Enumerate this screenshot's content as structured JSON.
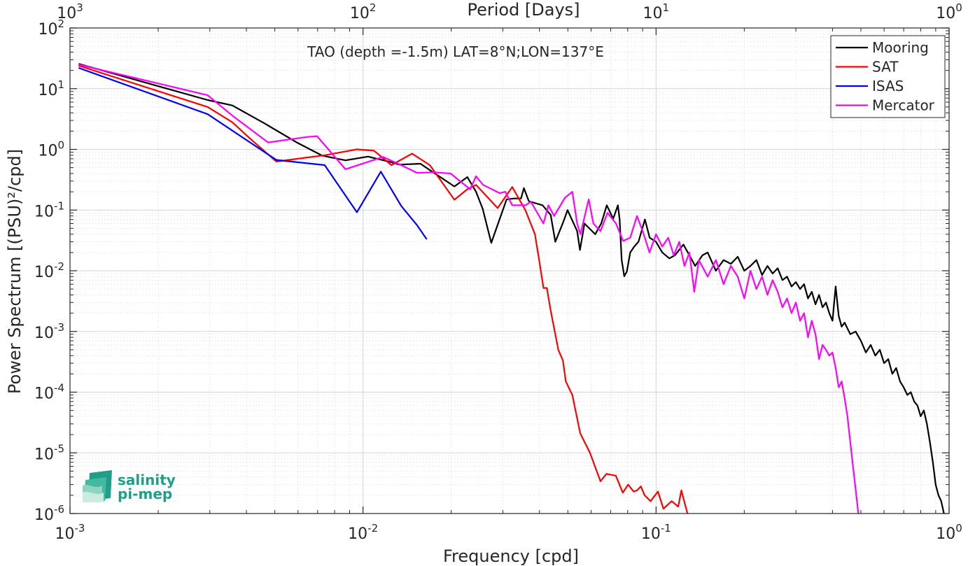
{
  "chart_data": {
    "type": "line",
    "title": "TAO (depth =-1.5m) LAT=8°N;LON=137°E",
    "xlabel": "Frequency [cpd]",
    "ylabel": "Power Spectrum [(PSU)²/cpd]",
    "top_xlabel": "Period [Days]",
    "xscale": "log",
    "yscale": "log",
    "xlim": [
      0.001,
      1
    ],
    "ylim": [
      1e-06,
      100
    ],
    "grid": true,
    "minor_grid": true,
    "legend_position": "top-right",
    "x_ticks": [
      {
        "value": 0.001,
        "base": "10",
        "exp": "-3"
      },
      {
        "value": 0.01,
        "base": "10",
        "exp": "-2"
      },
      {
        "value": 0.1,
        "base": "10",
        "exp": "-1"
      },
      {
        "value": 1,
        "base": "10",
        "exp": "0"
      }
    ],
    "top_ticks": [
      {
        "value": 0.001,
        "base": "10",
        "exp": "3"
      },
      {
        "value": 0.01,
        "base": "10",
        "exp": "2"
      },
      {
        "value": 0.1,
        "base": "10",
        "exp": "1"
      },
      {
        "value": 1,
        "base": "10",
        "exp": "0"
      }
    ],
    "y_ticks": [
      {
        "value": 100,
        "base": "10",
        "exp": "2"
      },
      {
        "value": 10,
        "base": "10",
        "exp": "1"
      },
      {
        "value": 1,
        "base": "10",
        "exp": "0"
      },
      {
        "value": 0.1,
        "base": "10",
        "exp": "-1"
      },
      {
        "value": 0.01,
        "base": "10",
        "exp": "-2"
      },
      {
        "value": 0.001,
        "base": "10",
        "exp": "-3"
      },
      {
        "value": 0.0001,
        "base": "10",
        "exp": "-4"
      },
      {
        "value": 1e-05,
        "base": "10",
        "exp": "-5"
      },
      {
        "value": 1e-06,
        "base": "10",
        "exp": "-6"
      }
    ],
    "series": [
      {
        "name": "Mooring",
        "color": "#000000",
        "points": [
          [
            0.00107,
            25.7
          ],
          [
            0.00295,
            6.5
          ],
          [
            0.00358,
            5.3
          ],
          [
            0.00457,
            2.75
          ],
          [
            0.00594,
            1.3
          ],
          [
            0.00725,
            0.79
          ],
          [
            0.00871,
            0.66
          ],
          [
            0.0104,
            0.76
          ],
          [
            0.0124,
            0.62
          ],
          [
            0.0133,
            0.56
          ],
          [
            0.0157,
            0.58
          ],
          [
            0.0172,
            0.43
          ],
          [
            0.0205,
            0.245
          ],
          [
            0.0227,
            0.35
          ],
          [
            0.0243,
            0.2
          ],
          [
            0.0256,
            0.105
          ],
          [
            0.0274,
            0.0288
          ],
          [
            0.0309,
            0.15
          ],
          [
            0.0327,
            0.155
          ],
          [
            0.0346,
            0.155
          ],
          [
            0.0354,
            0.23
          ],
          [
            0.0368,
            0.14
          ],
          [
            0.041,
            0.12
          ],
          [
            0.0437,
            0.083
          ],
          [
            0.0453,
            0.03
          ],
          [
            0.0482,
            0.063
          ],
          [
            0.0499,
            0.1
          ],
          [
            0.0538,
            0.045
          ],
          [
            0.055,
            0.022
          ],
          [
            0.057,
            0.06
          ],
          [
            0.062,
            0.04
          ],
          [
            0.065,
            0.06
          ],
          [
            0.0679,
            0.12
          ],
          [
            0.0714,
            0.072
          ],
          [
            0.0741,
            0.12
          ],
          [
            0.0751,
            0.07
          ],
          [
            0.0763,
            0.015
          ],
          [
            0.0779,
            0.0081
          ],
          [
            0.0795,
            0.0097
          ],
          [
            0.0816,
            0.02
          ],
          [
            0.0842,
            0.025
          ],
          [
            0.0871,
            0.03
          ],
          [
            0.0916,
            0.07
          ],
          [
            0.0951,
            0.035
          ],
          [
            0.1,
            0.03
          ],
          [
            0.105,
            0.02
          ],
          [
            0.111,
            0.016
          ],
          [
            0.116,
            0.018
          ],
          [
            0.124,
            0.027
          ],
          [
            0.13,
            0.018
          ],
          [
            0.136,
            0.012
          ],
          [
            0.144,
            0.018
          ],
          [
            0.15,
            0.02
          ],
          [
            0.16,
            0.01
          ],
          [
            0.17,
            0.015
          ],
          [
            0.18,
            0.013
          ],
          [
            0.19,
            0.017
          ],
          [
            0.2,
            0.01
          ],
          [
            0.21,
            0.012
          ],
          [
            0.22,
            0.015
          ],
          [
            0.23,
            0.0085
          ],
          [
            0.24,
            0.012
          ],
          [
            0.25,
            0.009
          ],
          [
            0.26,
            0.011
          ],
          [
            0.27,
            0.007
          ],
          [
            0.28,
            0.008
          ],
          [
            0.29,
            0.0055
          ],
          [
            0.3,
            0.0065
          ],
          [
            0.31,
            0.005
          ],
          [
            0.32,
            0.006
          ],
          [
            0.33,
            0.0035
          ],
          [
            0.34,
            0.0045
          ],
          [
            0.35,
            0.0028
          ],
          [
            0.36,
            0.004
          ],
          [
            0.37,
            0.0025
          ],
          [
            0.38,
            0.003
          ],
          [
            0.39,
            0.002
          ],
          [
            0.4,
            0.0015
          ],
          [
            0.41,
            0.0055
          ],
          [
            0.42,
            0.0018
          ],
          [
            0.43,
            0.0012
          ],
          [
            0.44,
            0.0014
          ],
          [
            0.46,
            0.0009
          ],
          [
            0.48,
            0.001
          ],
          [
            0.5,
            0.0007
          ],
          [
            0.52,
            0.00045
          ],
          [
            0.54,
            0.0006
          ],
          [
            0.56,
            0.0004
          ],
          [
            0.58,
            0.0005
          ],
          [
            0.6,
            0.0003
          ],
          [
            0.62,
            0.00035
          ],
          [
            0.64,
            0.0002
          ],
          [
            0.66,
            0.00025
          ],
          [
            0.68,
            0.00015
          ],
          [
            0.7,
            0.00012
          ],
          [
            0.72,
            9e-05
          ],
          [
            0.74,
            0.0001
          ],
          [
            0.76,
            7e-05
          ],
          [
            0.78,
            6e-05
          ],
          [
            0.8,
            4e-05
          ],
          [
            0.82,
            5e-05
          ],
          [
            0.84,
            3e-05
          ],
          [
            0.86,
            1.5e-05
          ],
          [
            0.88,
            7e-06
          ],
          [
            0.9,
            3e-06
          ],
          [
            0.92,
            2e-06
          ],
          [
            0.94,
            1.6e-06
          ],
          [
            0.96,
            1e-06
          ]
        ]
      },
      {
        "name": "SAT",
        "color": "#ff0000",
        "points": [
          [
            0.00107,
            24.0
          ],
          [
            0.00295,
            5.0
          ],
          [
            0.00358,
            2.8
          ],
          [
            0.00412,
            1.5
          ],
          [
            0.00506,
            0.63
          ],
          [
            0.0074,
            0.8
          ],
          [
            0.00953,
            1.0
          ],
          [
            0.0109,
            0.95
          ],
          [
            0.0125,
            0.55
          ],
          [
            0.0147,
            0.85
          ],
          [
            0.0169,
            0.55
          ],
          [
            0.0205,
            0.148
          ],
          [
            0.0227,
            0.22
          ],
          [
            0.0243,
            0.26
          ],
          [
            0.0288,
            0.108
          ],
          [
            0.0323,
            0.24
          ],
          [
            0.0358,
            0.1
          ],
          [
            0.0386,
            0.04
          ],
          [
            0.0399,
            0.015
          ],
          [
            0.0413,
            0.0052
          ],
          [
            0.0424,
            0.0052
          ],
          [
            0.0437,
            0.0022
          ],
          [
            0.0464,
            0.0005
          ],
          [
            0.0481,
            0.00033
          ],
          [
            0.0492,
            0.00015
          ],
          [
            0.0518,
            9e-05
          ],
          [
            0.0551,
            2.1e-05
          ],
          [
            0.0595,
            1e-05
          ],
          [
            0.0646,
            3.4e-06
          ],
          [
            0.0677,
            4.5e-06
          ],
          [
            0.0729,
            4.2e-06
          ],
          [
            0.077,
            2.2e-06
          ],
          [
            0.0803,
            3e-06
          ],
          [
            0.0838,
            2.3e-06
          ],
          [
            0.0861,
            2.4e-06
          ],
          [
            0.0888,
            2.8e-06
          ],
          [
            0.0914,
            2e-06
          ],
          [
            0.0958,
            1.6e-06
          ],
          [
            0.1015,
            2.3e-06
          ],
          [
            0.106,
            1.2e-06
          ],
          [
            0.113,
            1.6e-06
          ],
          [
            0.119,
            1.3e-06
          ],
          [
            0.122,
            2.4e-06
          ],
          [
            0.128,
            1e-06
          ]
        ]
      },
      {
        "name": "ISAS",
        "color": "#0000ff",
        "points": [
          [
            0.00107,
            22.0
          ],
          [
            0.00295,
            3.8
          ],
          [
            0.00506,
            0.67
          ],
          [
            0.0074,
            0.55
          ],
          [
            0.00953,
            0.092
          ],
          [
            0.0115,
            0.43
          ],
          [
            0.0135,
            0.117
          ],
          [
            0.0153,
            0.056
          ],
          [
            0.0165,
            0.033
          ]
        ]
      },
      {
        "name": "Mercator",
        "color": "#ff00ff",
        "points": [
          [
            0.00107,
            25.0
          ],
          [
            0.00295,
            7.8
          ],
          [
            0.00358,
            3.6
          ],
          [
            0.00474,
            1.3
          ],
          [
            0.00642,
            1.6
          ],
          [
            0.00697,
            1.65
          ],
          [
            0.00871,
            0.47
          ],
          [
            0.0117,
            0.75
          ],
          [
            0.0133,
            0.57
          ],
          [
            0.0153,
            0.41
          ],
          [
            0.0174,
            0.42
          ],
          [
            0.0199,
            0.4
          ],
          [
            0.0232,
            0.22
          ],
          [
            0.0243,
            0.36
          ],
          [
            0.0257,
            0.26
          ],
          [
            0.0293,
            0.19
          ],
          [
            0.0306,
            0.2
          ],
          [
            0.0323,
            0.12
          ],
          [
            0.0358,
            0.12
          ],
          [
            0.0374,
            0.137
          ],
          [
            0.0413,
            0.06
          ],
          [
            0.0429,
            0.12
          ],
          [
            0.0449,
            0.08
          ],
          [
            0.0489,
            0.16
          ],
          [
            0.0518,
            0.2
          ],
          [
            0.0538,
            0.06
          ],
          [
            0.0552,
            0.04
          ],
          [
            0.0589,
            0.15
          ],
          [
            0.0611,
            0.06
          ],
          [
            0.0646,
            0.045
          ],
          [
            0.0683,
            0.09
          ],
          [
            0.073,
            0.06
          ],
          [
            0.0772,
            0.031
          ],
          [
            0.0816,
            0.035
          ],
          [
            0.0861,
            0.08
          ],
          [
            0.09,
            0.045
          ],
          [
            0.095,
            0.02
          ],
          [
            0.1,
            0.04
          ],
          [
            0.105,
            0.025
          ],
          [
            0.11,
            0.035
          ],
          [
            0.115,
            0.018
          ],
          [
            0.12,
            0.03
          ],
          [
            0.125,
            0.012
          ],
          [
            0.13,
            0.02
          ],
          [
            0.135,
            0.0045
          ],
          [
            0.14,
            0.015
          ],
          [
            0.15,
            0.008
          ],
          [
            0.16,
            0.015
          ],
          [
            0.17,
            0.006
          ],
          [
            0.18,
            0.012
          ],
          [
            0.19,
            0.008
          ],
          [
            0.2,
            0.0035
          ],
          [
            0.21,
            0.01
          ],
          [
            0.22,
            0.005
          ],
          [
            0.23,
            0.008
          ],
          [
            0.24,
            0.004
          ],
          [
            0.25,
            0.007
          ],
          [
            0.26,
            0.0045
          ],
          [
            0.27,
            0.0025
          ],
          [
            0.28,
            0.0035
          ],
          [
            0.29,
            0.002
          ],
          [
            0.3,
            0.003
          ],
          [
            0.31,
            0.0015
          ],
          [
            0.32,
            0.002
          ],
          [
            0.33,
            0.0008
          ],
          [
            0.34,
            0.0015
          ],
          [
            0.35,
            0.0009
          ],
          [
            0.36,
            0.00035
          ],
          [
            0.37,
            0.0006
          ],
          [
            0.38,
            0.0005
          ],
          [
            0.39,
            0.0004
          ],
          [
            0.4,
            0.00045
          ],
          [
            0.41,
            0.00025
          ],
          [
            0.42,
            0.00012
          ],
          [
            0.43,
            0.00015
          ],
          [
            0.44,
            8e-05
          ],
          [
            0.45,
            4e-05
          ],
          [
            0.46,
            1.5e-05
          ],
          [
            0.47,
            6e-06
          ],
          [
            0.48,
            2.5e-06
          ],
          [
            0.49,
            1e-06
          ]
        ]
      }
    ]
  },
  "logo": {
    "line1": "salinity",
    "line2": "pi-mep"
  }
}
